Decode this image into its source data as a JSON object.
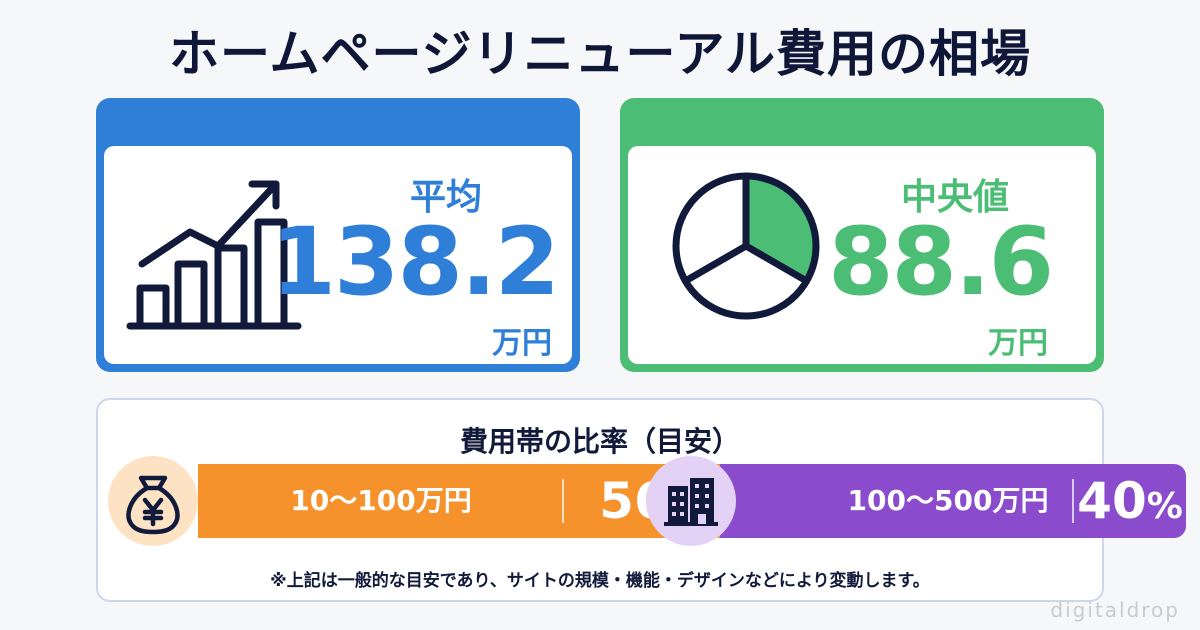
{
  "title": "ホームページリニューアル費用の相場",
  "average": {
    "label": "平均",
    "value": "138.2",
    "unit": "万円",
    "color": "#2f7fd8",
    "icon": "growth-bar-chart-icon"
  },
  "median": {
    "label": "中央値",
    "value": "88.6",
    "unit": "万円",
    "color": "#4cbd74",
    "icon": "pie-chart-icon"
  },
  "ratio": {
    "title": "費用帯の比率（目安）",
    "items": [
      {
        "range": "10〜100万円",
        "percent_number": "56",
        "percent_sign": "%",
        "color": "#f5922b",
        "icon": "money-bag-yen-icon"
      },
      {
        "range": "100〜500万円",
        "percent_number": "40",
        "percent_sign": "%",
        "color": "#8a4ccc",
        "icon": "building-icon"
      }
    ],
    "note": "※上記は一般的な目安であり、サイトの規模・機能・デザインなどにより変動します。"
  },
  "watermark": "digitaldrop"
}
